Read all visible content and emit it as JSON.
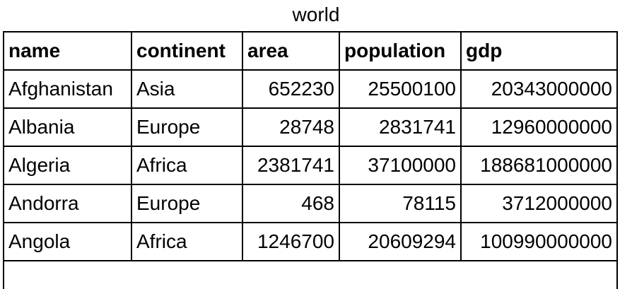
{
  "caption": "world",
  "columns": [
    "name",
    "continent",
    "area",
    "population",
    "gdp"
  ],
  "rows": [
    {
      "name": "Afghanistan",
      "continent": "Asia",
      "area": "652230",
      "population": "25500100",
      "gdp": "20343000000"
    },
    {
      "name": "Albania",
      "continent": "Europe",
      "area": "28748",
      "population": "2831741",
      "gdp": "12960000000"
    },
    {
      "name": "Algeria",
      "continent": "Africa",
      "area": "2381741",
      "population": "37100000",
      "gdp": "188681000000"
    },
    {
      "name": "Andorra",
      "continent": "Europe",
      "area": "468",
      "population": "78115",
      "gdp": "3712000000"
    },
    {
      "name": "Angola",
      "continent": "Africa",
      "area": "1246700",
      "population": "20609294",
      "gdp": "100990000000"
    }
  ]
}
